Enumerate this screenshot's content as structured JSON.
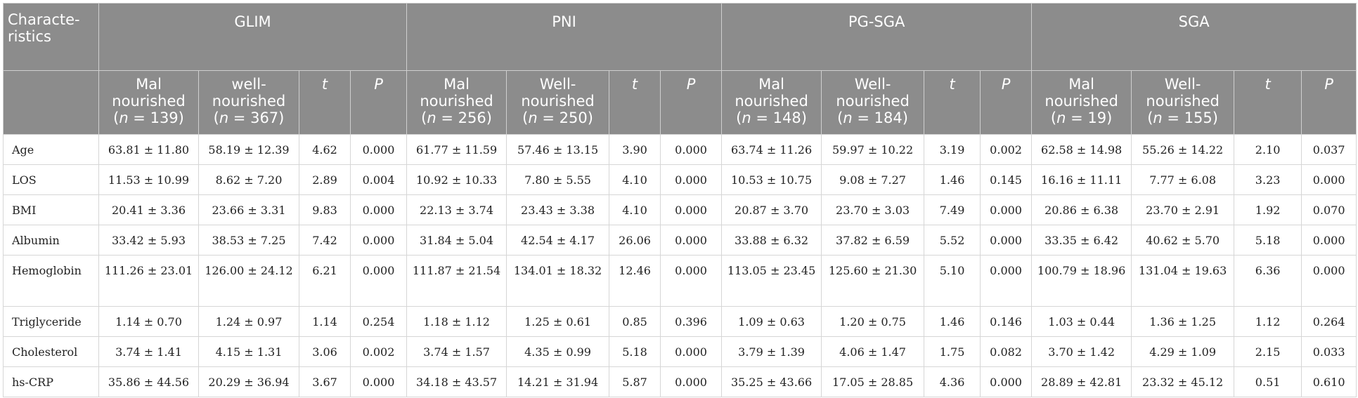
{
  "table": {
    "corner_label": "Characte-ristics",
    "groups": [
      "GLIM",
      "PNI",
      "PG-SGA",
      "SGA"
    ],
    "subheaders": [
      {
        "label": "Mal nourished",
        "n": "139",
        "prefix": "(",
        "suffix": ")"
      },
      {
        "label": "well-nourished",
        "n": "367",
        "prefix": "(",
        "suffix": ")"
      },
      {
        "label": "t"
      },
      {
        "label": "P"
      },
      {
        "label": "Mal nourished",
        "n": "256",
        "prefix": "(",
        "suffix": ")"
      },
      {
        "label": "Well-nourished",
        "n": "250",
        "prefix": "(",
        "suffix": ")"
      },
      {
        "label": "t"
      },
      {
        "label": "P"
      },
      {
        "label": "Mal nourished",
        "n": "148",
        "prefix": "(",
        "suffix": ")"
      },
      {
        "label": "Well-nourished",
        "n": "184",
        "prefix": "(",
        "suffix": ")"
      },
      {
        "label": "t"
      },
      {
        "label": "P"
      },
      {
        "label": "Mal nourished",
        "n": "19",
        "prefix": "(",
        "suffix": ")"
      },
      {
        "label": "Well-nourished",
        "n": "155",
        "prefix": "(",
        "suffix": ")"
      },
      {
        "label": "t"
      },
      {
        "label": "P"
      }
    ],
    "rows": [
      {
        "label": "Age",
        "cells": [
          "63.81 ± 11.80",
          "58.19 ± 12.39",
          "4.62",
          "0.000",
          "61.77 ± 11.59",
          "57.46 ± 13.15",
          "3.90",
          "0.000",
          "63.74 ± 11.26",
          "59.97 ± 10.22",
          "3.19",
          "0.002",
          "62.58 ± 14.98",
          "55.26 ± 14.22",
          "2.10",
          "0.037"
        ]
      },
      {
        "label": "LOS",
        "cells": [
          "11.53 ± 10.99",
          "8.62 ± 7.20",
          "2.89",
          "0.004",
          "10.92 ± 10.33",
          "7.80 ± 5.55",
          "4.10",
          "0.000",
          "10.53 ± 10.75",
          "9.08 ± 7.27",
          "1.46",
          "0.145",
          "16.16 ± 11.11",
          "7.77 ± 6.08",
          "3.23",
          "0.000"
        ]
      },
      {
        "label": "BMI",
        "cells": [
          "20.41 ± 3.36",
          "23.66 ± 3.31",
          "9.83",
          "0.000",
          "22.13 ± 3.74",
          "23.43 ± 3.38",
          "4.10",
          "0.000",
          "20.87 ± 3.70",
          "23.70 ± 3.03",
          "7.49",
          "0.000",
          "20.86 ± 6.38",
          "23.70 ± 2.91",
          "1.92",
          "0.070"
        ]
      },
      {
        "label": "Albumin",
        "cells": [
          "33.42 ± 5.93",
          "38.53 ± 7.25",
          "7.42",
          "0.000",
          "31.84 ± 5.04",
          "42.54 ± 4.17",
          "26.06",
          "0.000",
          "33.88 ± 6.32",
          "37.82 ± 6.59",
          "5.52",
          "0.000",
          "33.35 ± 6.42",
          "40.62 ± 5.70",
          "5.18",
          "0.000"
        ]
      },
      {
        "label": "Hemoglobin",
        "cells": [
          "111.26 ± 23.01",
          "126.00 ± 24.12",
          "6.21",
          "0.000",
          "111.87 ± 21.54",
          "134.01 ± 18.32",
          "12.46",
          "0.000",
          "113.05 ± 23.45",
          "125.60 ± 21.30",
          "5.10",
          "0.000",
          "100.79 ± 18.96",
          "131.04 ± 19.63",
          "6.36",
          "0.000"
        ]
      },
      {
        "label": "Triglyceride",
        "cells": [
          "1.14 ± 0.70",
          "1.24 ± 0.97",
          "1.14",
          "0.254",
          "1.18 ± 1.12",
          "1.25 ± 0.61",
          "0.85",
          "0.396",
          "1.09 ± 0.63",
          "1.20 ± 0.75",
          "1.46",
          "0.146",
          "1.03 ± 0.44",
          "1.36 ± 1.25",
          "1.12",
          "0.264"
        ]
      },
      {
        "label": "Cholesterol",
        "cells": [
          "3.74 ± 1.41",
          "4.15 ± 1.31",
          "3.06",
          "0.002",
          "3.74 ± 1.57",
          "4.35 ± 0.99",
          "5.18",
          "0.000",
          "3.79 ± 1.39",
          "4.06 ± 1.47",
          "1.75",
          "0.082",
          "3.70 ± 1.42",
          "4.29 ± 1.09",
          "2.15",
          "0.033"
        ]
      },
      {
        "label": "hs-CRP",
        "cells": [
          "35.86 ± 44.56",
          "20.29 ± 36.94",
          "3.67",
          "0.000",
          "34.18 ± 43.57",
          "14.21 ± 31.94",
          "5.87",
          "0.000",
          "35.25 ± 43.66",
          "17.05 ± 28.85",
          "4.36",
          "0.000",
          "28.89 ± 42.81",
          "23.32 ± 45.12",
          "0.51",
          "0.610"
        ]
      }
    ]
  },
  "colors": {
    "header_bg": "#8c8c8c",
    "header_text": "#ffffff",
    "border": "#d6d6d6",
    "body_text": "#222222"
  }
}
